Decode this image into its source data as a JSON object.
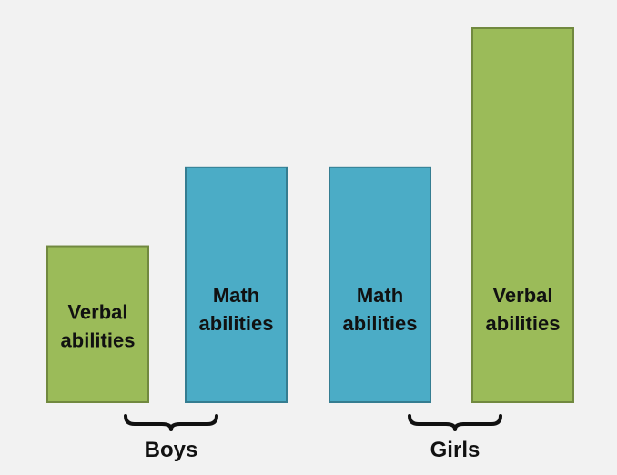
{
  "chart_data": {
    "type": "bar",
    "title": "",
    "xlabel": "",
    "ylabel": "",
    "ylim": [
      0,
      100
    ],
    "axes_visible": false,
    "grid": false,
    "legend": "none",
    "colors": {
      "verbal": "#9bbb59",
      "math": "#4bacc6",
      "verbal_border": "#71893f",
      "math_border": "#357d91",
      "background": "#f2f2f2"
    },
    "bars": [
      {
        "label_lines": [
          "Verbal",
          "abilities"
        ],
        "value": 42,
        "group": "Boys",
        "kind": "verbal"
      },
      {
        "label_lines": [
          "Math",
          "abilities"
        ],
        "value": 63,
        "group": "Boys",
        "kind": "math"
      },
      {
        "label_lines": [
          "Math",
          "abilities"
        ],
        "value": 63,
        "group": "Girls",
        "kind": "math"
      },
      {
        "label_lines": [
          "Verbal",
          "abilities"
        ],
        "value": 100,
        "group": "Girls",
        "kind": "verbal"
      }
    ],
    "groups": [
      {
        "name": "Boys"
      },
      {
        "name": "Girls"
      }
    ]
  }
}
